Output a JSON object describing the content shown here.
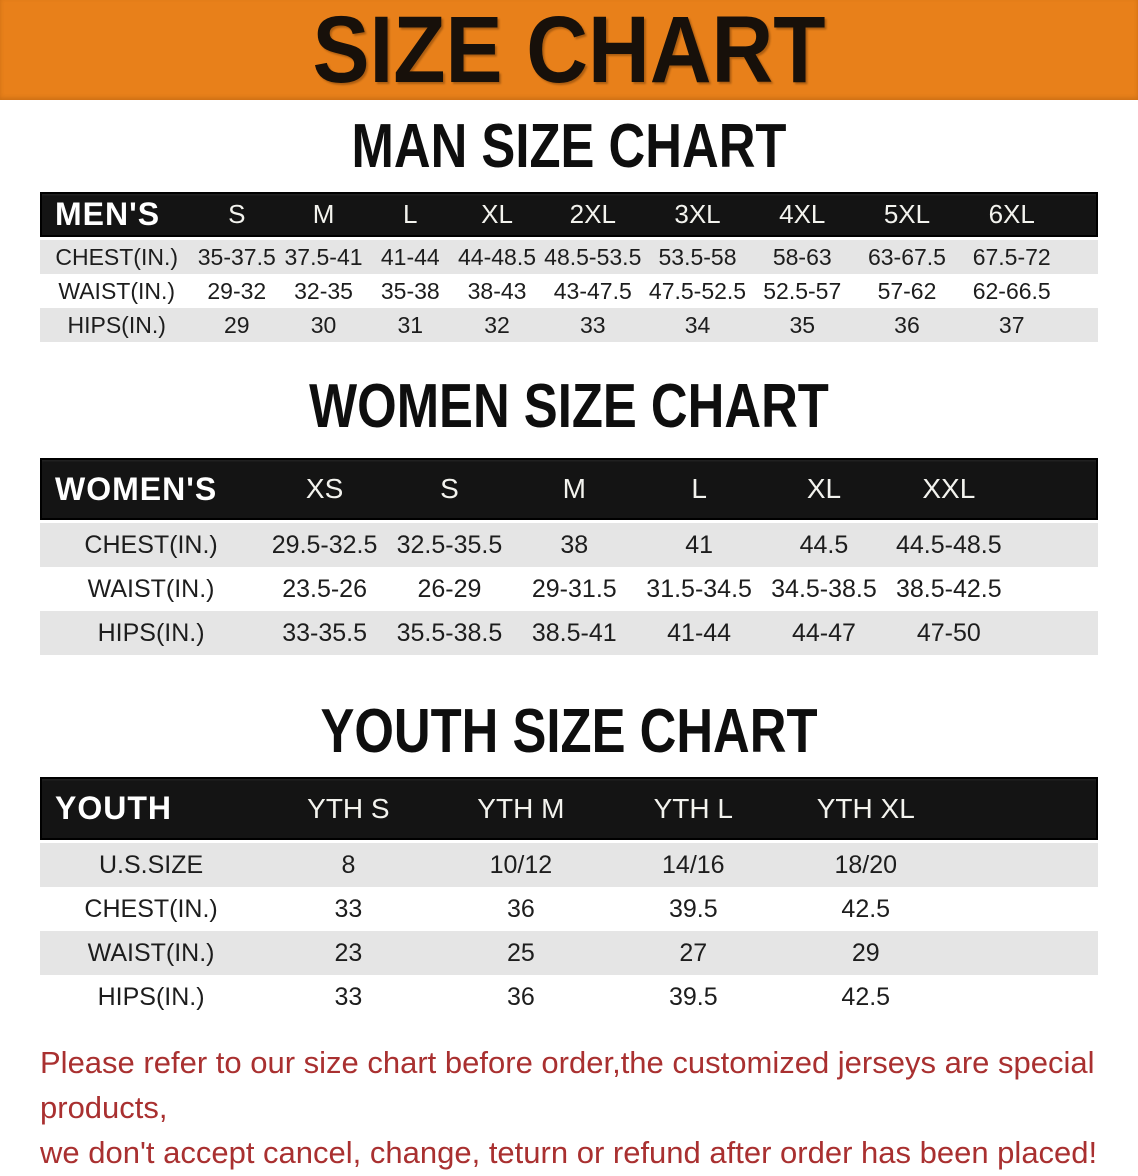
{
  "banner": {
    "title": "SIZE CHART",
    "bg_color": "#e8801a",
    "text_color": "#17100a"
  },
  "sections": [
    {
      "id": "men",
      "heading": "MAN SIZE CHART",
      "header_label": "MEN'S",
      "columns": [
        "S",
        "M",
        "L",
        "XL",
        "2XL",
        "3XL",
        "4XL",
        "5XL",
        "6XL"
      ],
      "rows": [
        {
          "label": "CHEST(IN.)",
          "values": [
            "35-37.5",
            "37.5-41",
            "41-44",
            "44-48.5",
            "48.5-53.5",
            "53.5-58",
            "58-63",
            "63-67.5",
            "67.5-72"
          ]
        },
        {
          "label": "WAIST(IN.)",
          "values": [
            "29-32",
            "32-35",
            "35-38",
            "38-43",
            "43-47.5",
            "47.5-52.5",
            "52.5-57",
            "57-62",
            "62-66.5"
          ]
        },
        {
          "label": "HIPS(IN.)",
          "values": [
            "29",
            "30",
            "31",
            "32",
            "33",
            "34",
            "35",
            "36",
            "37"
          ]
        }
      ]
    },
    {
      "id": "women",
      "heading": "WOMEN SIZE CHART",
      "header_label": "WOMEN'S",
      "columns": [
        "XS",
        "S",
        "M",
        "L",
        "XL",
        "XXL"
      ],
      "rows": [
        {
          "label": "CHEST(IN.)",
          "values": [
            "29.5-32.5",
            "32.5-35.5",
            "38",
            "41",
            "44.5",
            "44.5-48.5"
          ]
        },
        {
          "label": "WAIST(IN.)",
          "values": [
            "23.5-26",
            "26-29",
            "29-31.5",
            "31.5-34.5",
            "34.5-38.5",
            "38.5-42.5"
          ]
        },
        {
          "label": "HIPS(IN.)",
          "values": [
            "33-35.5",
            "35.5-38.5",
            "38.5-41",
            "41-44",
            "44-47",
            "47-50"
          ]
        }
      ]
    },
    {
      "id": "youth",
      "heading": "YOUTH SIZE CHART",
      "header_label": "YOUTH",
      "columns": [
        "YTH S",
        "YTH M",
        "YTH L",
        "YTH XL"
      ],
      "rows": [
        {
          "label": "U.S.SIZE",
          "values": [
            "8",
            "10/12",
            "14/16",
            "18/20"
          ]
        },
        {
          "label": "CHEST(IN.)",
          "values": [
            "33",
            "36",
            "39.5",
            "42.5"
          ]
        },
        {
          "label": "WAIST(IN.)",
          "values": [
            "23",
            "25",
            "27",
            "29"
          ]
        },
        {
          "label": "HIPS(IN.)",
          "values": [
            "33",
            "36",
            "39.5",
            "42.5"
          ]
        }
      ]
    }
  ],
  "footer": {
    "line1": "Please refer to our size chart before order,the customized jerseys are special products,",
    "line2": "we don't accept cancel, change, teturn or refund after order has been placed!",
    "text_color": "#a93030"
  },
  "colors": {
    "banner_orange": "#e8801a",
    "header_bar_black": "#141414",
    "stripe_gray": "#e5e5e5",
    "body_text": "#1d1d1d",
    "footer_red": "#a93030"
  }
}
